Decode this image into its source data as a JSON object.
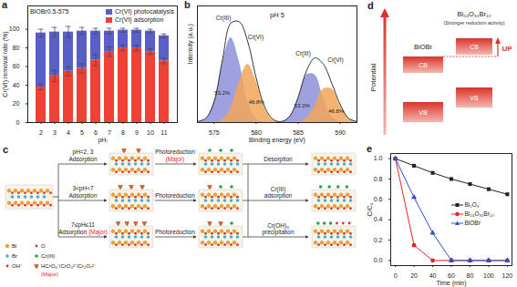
{
  "chart_data": [
    {
      "panel_label": "a",
      "type": "bar",
      "stacked": true,
      "legend": "top-right",
      "legend_title": "BiOBr0.5-575",
      "x_label": "pHᵢ",
      "y_label": "Cr(VI) removal rate (%)",
      "categories": [
        2,
        3,
        4,
        5,
        6,
        7,
        8,
        9,
        10,
        11
      ],
      "ylim": [
        0,
        125
      ],
      "yticks": [
        0,
        20,
        40,
        60,
        80,
        100
      ],
      "series": [
        {
          "name": "Cr(VI) adsorption",
          "color": "#ef4136",
          "values": [
            38,
            50,
            55,
            58,
            67,
            76,
            80,
            80,
            76,
            66
          ],
          "errors": [
            3,
            6,
            5,
            5,
            6,
            5,
            3,
            3,
            3,
            3
          ]
        },
        {
          "name": "Cr(VI) photocatalysis",
          "color": "#5a5fc8",
          "values": [
            58,
            47,
            42,
            40,
            31,
            22,
            19,
            19,
            22,
            27
          ],
          "errors": [
            4,
            5,
            6,
            4,
            3,
            3,
            2,
            2,
            2,
            2
          ]
        }
      ]
    },
    {
      "panel_label": "b",
      "type": "area",
      "title": "pH 5",
      "tick_labels": "x",
      "x_label": "Binding energy (eV)",
      "y_label": "Intensity (a.u.)",
      "xlim": [
        573,
        592
      ],
      "xticks": [
        575,
        580,
        585,
        590
      ],
      "ylim": [
        0,
        110
      ],
      "x": [
        573,
        574,
        575,
        576,
        577,
        578,
        579,
        580,
        581,
        582,
        583,
        584,
        585,
        586,
        587,
        588,
        589,
        590,
        591,
        592
      ],
      "values": [
        1,
        4,
        20,
        60,
        94,
        95,
        76,
        42,
        15,
        3,
        1,
        6,
        24,
        49,
        61,
        55,
        37,
        17,
        4,
        1
      ],
      "color": "#333333",
      "series": [
        {
          "name": "Cr(III)",
          "color": "#8e90d8",
          "peaks": [
            577,
            586.5
          ],
          "share_label": "53.2%",
          "values": [
            0.3,
            3.5,
            20,
            57,
            80,
            57,
            20,
            3.5,
            0.3,
            0,
            0,
            5.7,
            23,
            45,
            45,
            23,
            5.7,
            0.7,
            0,
            0
          ]
        },
        {
          "name": "Cr(VI)",
          "color": "#f2a65a",
          "peaks": [
            579,
            588.5
          ],
          "share_label": "46.8%",
          "values": [
            0,
            0,
            0.2,
            2.4,
            13.8,
            39,
            55,
            39,
            13.8,
            2.4,
            0.2,
            0,
            0.5,
            4,
            16,
            31.5,
            31.5,
            16,
            4,
            0.5
          ]
        }
      ]
    },
    {
      "panel_label": "e",
      "type": "line",
      "legend": "right",
      "x_label": "Time (min)",
      "y_label": "C/C₀",
      "x": [
        0,
        20,
        40,
        60,
        80,
        100,
        120
      ],
      "xlim": [
        -5,
        125
      ],
      "xticks": [
        0,
        20,
        40,
        60,
        80,
        100,
        120
      ],
      "ylim": [
        -0.05,
        1.05
      ],
      "yticks": [
        {
          "value": 0,
          "label": "0.0"
        },
        {
          "value": 0.2,
          "label": "0.2"
        },
        {
          "value": 0.4,
          "label": "0.4"
        },
        {
          "value": 0.6,
          "label": "0.6"
        },
        {
          "value": 0.8,
          "label": "0.8"
        },
        {
          "value": 1,
          "label": "1.0"
        }
      ],
      "series": [
        {
          "name": "Bi₂O₃",
          "color": "#222222",
          "marker": "square",
          "values": [
            1.0,
            0.93,
            0.86,
            0.8,
            0.75,
            0.7,
            0.65
          ]
        },
        {
          "name": "Bi₂₄O₃₁Br₁₀",
          "color": "#e8231f",
          "marker": "circle",
          "values": [
            1.0,
            0.15,
            0,
            0,
            0,
            0,
            0
          ]
        },
        {
          "name": "BiOBr",
          "color": "#2f4fd6",
          "marker": "triangle",
          "values": [
            1.0,
            0.62,
            0.27,
            0,
            0,
            0,
            0
          ]
        }
      ]
    }
  ],
  "diagrams": {
    "c": {
      "panel_label": "c",
      "adsorption": [
        {
          "condition": "pH=2, 3",
          "text": "Adsorption"
        },
        {
          "condition": "3<pH<7",
          "text": "Adsorption"
        },
        {
          "condition": "7≤pH≤11",
          "text": "Adsorption",
          "emphasis": "(Major)"
        }
      ],
      "photoreduction": [
        {
          "text": "Photoreduction",
          "emphasis": "(Major)"
        },
        {
          "text": "Photoreduction"
        },
        {
          "text": "Photoreduction"
        }
      ],
      "outcomes": [
        "Desorption",
        "Cr(III) adsorption",
        "Cr(OH)₃ precipitation"
      ],
      "legend": [
        {
          "name": "Bi",
          "color": "#e8a23a"
        },
        {
          "name": "O",
          "color": "#d9342b"
        },
        {
          "name": "Br",
          "color": "#3fb5c8"
        },
        {
          "name": "Cr(III)",
          "color": "#2e9e4a"
        },
        {
          "name": "OH⁻",
          "color": "#d9342b"
        },
        {
          "name": "HCrO₄⁻/CrO₄²⁻/Cr₂O₇²⁻",
          "emphasis": "(Major)",
          "color": "#b8742e"
        }
      ]
    },
    "d": {
      "panel_label": "d",
      "axis_label": "Potential",
      "shift": "UP",
      "color": "#d9342b",
      "materials": [
        {
          "name": "BiOBr",
          "bands": [
            "CB",
            "VB"
          ]
        },
        {
          "name": "Bi₂₄O₃₁Br₁₀",
          "note": "(Stronger reduction activity)",
          "bands": [
            "CB",
            "VB"
          ]
        }
      ]
    }
  }
}
